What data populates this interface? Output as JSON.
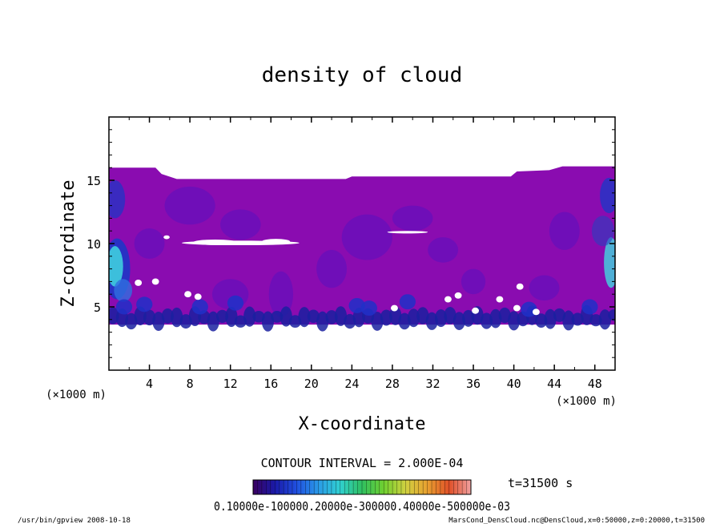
{
  "chart_data": {
    "type": "heatmap",
    "title": "density of cloud",
    "xlabel": "X-coordinate",
    "ylabel": "Z-coordinate",
    "x_unit": "(×1000 m)",
    "y_unit": "(×1000 m)",
    "xlim": [
      0,
      50
    ],
    "ylim": [
      0,
      20
    ],
    "x_ticks": [
      4,
      8,
      12,
      16,
      20,
      24,
      28,
      32,
      36,
      40,
      44,
      48
    ],
    "y_ticks": [
      5,
      10,
      15
    ],
    "contour_interval": "CONTOUR INTERVAL = 2.000E-04",
    "time_label": "t=31500 s",
    "colorbar_labels": "0.10000e-100000.20000e-300000.40000e-500000e-03",
    "colorbar_colors": [
      "#3a0060",
      "#1a1aa8",
      "#2050e0",
      "#2a9ae8",
      "#30d0d0",
      "#30c060",
      "#70d030",
      "#d0d040",
      "#e8a030",
      "#e05028",
      "#f0a0a0"
    ],
    "field": {
      "background_color": "#8a0cb0",
      "cloud_top_left": 16.0,
      "cloud_top_middle": 15.1,
      "cloud_top_right": 16.1,
      "cloud_base": 3.6,
      "high_density_color": "#1838c8",
      "max_density_color": "#40d8e0"
    }
  },
  "footer": {
    "left": "/usr/bin/gpview   2008-10-18",
    "right": "MarsCond_DensCloud.nc@DensCloud,x=0:50000,z=0:20000,t=31500"
  }
}
